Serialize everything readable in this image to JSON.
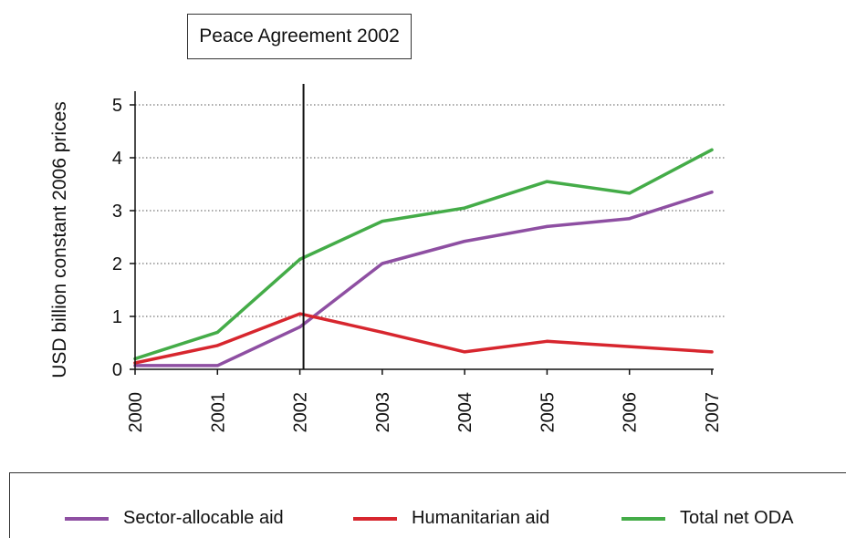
{
  "chart_data": {
    "type": "line",
    "title": "",
    "xlabel": "",
    "ylabel": "USD billion constant 2006 prices",
    "categories": [
      "2000",
      "2001",
      "2002",
      "2003",
      "2004",
      "2005",
      "2006",
      "2007"
    ],
    "ylim": [
      0,
      5
    ],
    "yticks": [
      "0",
      "1",
      "2",
      "3",
      "4",
      "5"
    ],
    "grid": "horizontal dotted",
    "series": [
      {
        "name": "Sector-allocable aid",
        "color": "#8e4fa2",
        "values": [
          0.07,
          0.07,
          0.8,
          2.0,
          2.42,
          2.7,
          2.85,
          3.35
        ]
      },
      {
        "name": "Humanitarian aid",
        "color": "#d7262e",
        "values": [
          0.12,
          0.45,
          1.05,
          0.7,
          0.33,
          0.53,
          0.43,
          0.33
        ]
      },
      {
        "name": "Total net ODA",
        "color": "#44ac48",
        "values": [
          0.2,
          0.7,
          2.08,
          2.8,
          3.05,
          3.55,
          3.33,
          4.15
        ]
      }
    ],
    "annotation": {
      "label": "Peace Agreement 2002",
      "x": "2002"
    },
    "legend_position": "bottom"
  }
}
